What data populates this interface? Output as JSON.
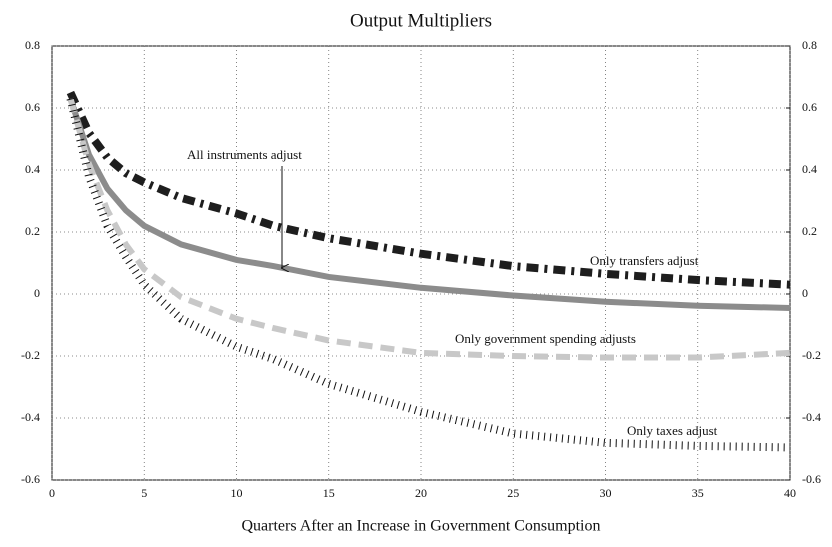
{
  "chart_data": {
    "type": "line",
    "title": "Output Multipliers",
    "x_label": "Quarters After an Increase in Government Consumption",
    "x": [
      1,
      2,
      3,
      4,
      5,
      7,
      10,
      12,
      15,
      20,
      25,
      30,
      35,
      40
    ],
    "series": [
      {
        "name": "Only transfers adjust",
        "color": "#1e1e1e",
        "values": [
          0.65,
          0.52,
          0.44,
          0.39,
          0.36,
          0.31,
          0.26,
          0.22,
          0.18,
          0.13,
          0.09,
          0.065,
          0.045,
          0.03
        ]
      },
      {
        "name": "All instruments adjust",
        "color": "#8c8c8c",
        "values": [
          0.63,
          0.45,
          0.34,
          0.27,
          0.22,
          0.16,
          0.11,
          0.09,
          0.055,
          0.02,
          -0.005,
          -0.025,
          -0.038,
          -0.045
        ]
      },
      {
        "name": "Only government spending adjusts",
        "color": "#c8c8c8",
        "values": [
          0.63,
          0.42,
          0.27,
          0.16,
          0.08,
          -0.01,
          -0.08,
          -0.11,
          -0.15,
          -0.19,
          -0.2,
          -0.205,
          -0.205,
          -0.19
        ]
      },
      {
        "name": "Only taxes adjust",
        "color": "#111111",
        "values": [
          0.63,
          0.38,
          0.22,
          0.12,
          0.03,
          -0.08,
          -0.17,
          -0.21,
          -0.29,
          -0.38,
          -0.45,
          -0.48,
          -0.49,
          -0.495
        ]
      }
    ],
    "xlim": [
      0,
      40
    ],
    "xticks": [
      0,
      5,
      10,
      15,
      20,
      25,
      30,
      35,
      40
    ],
    "ylim": [
      -0.6,
      0.8
    ],
    "yticks": [
      -0.6,
      -0.4,
      -0.2,
      0,
      0.2,
      0.4,
      0.6,
      0.8
    ],
    "y2lim": [
      -0.6,
      0.8
    ],
    "y2ticks": [
      -0.6,
      -0.4,
      -0.2,
      0,
      0.2,
      0.4,
      0.6,
      0.8
    ],
    "grid": true
  }
}
